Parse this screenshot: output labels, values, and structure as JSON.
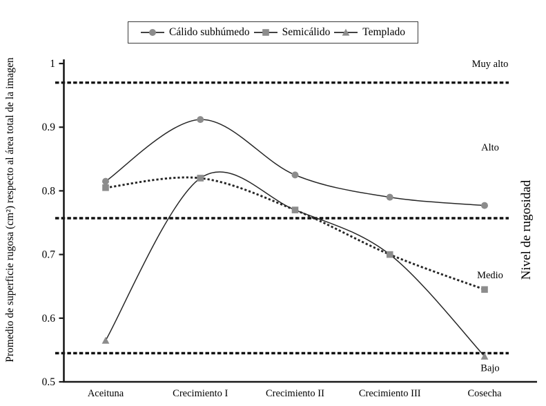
{
  "chart_data": {
    "type": "line",
    "title": "",
    "categories": [
      "Aceituna",
      "Crecimiento I",
      "Crecimiento II",
      "Crecimiento III",
      "Cosecha"
    ],
    "ylabel": "Promedio de superficie rugosa (cm²) respecto al área total de la imagen",
    "ylabel_right": "Nivel de rugosidad",
    "ylim": [
      0.5,
      1
    ],
    "grid": false,
    "legend_position": "top",
    "y_axis": {
      "tick_values": [
        1,
        0.9,
        0.8,
        0.7,
        0.6,
        0.5
      ],
      "tick_labels": [
        "1",
        "0.9",
        "0.8",
        "0.7",
        "0.6",
        "0.5"
      ]
    },
    "reference_lines": {
      "style": "dashed",
      "values": [
        0.97,
        0.757,
        0.545
      ]
    },
    "zone_labels": [
      {
        "text": "Muy alto",
        "value": 1.0
      },
      {
        "text": "Alto",
        "value": 0.869
      },
      {
        "text": "Medio",
        "value": 0.668
      },
      {
        "text": "Bajo",
        "value": 0.522
      }
    ],
    "series": [
      {
        "name": "Cálido subhúmedo",
        "marker": "circle",
        "line_style": "solid",
        "values": [
          0.815,
          0.912,
          0.825,
          0.79,
          0.777
        ],
        "markers_visible_at": [
          0,
          1,
          2,
          3,
          4
        ]
      },
      {
        "name": "Semicálido",
        "marker": "square",
        "line_style": "dotted",
        "values": [
          0.805,
          0.82,
          0.77,
          0.7,
          0.645
        ],
        "markers_visible_at": [
          0,
          1,
          2,
          3,
          4
        ]
      },
      {
        "name": "Templado",
        "marker": "triangle",
        "line_style": "solid",
        "values": [
          0.565,
          0.82,
          0.77,
          0.7,
          0.54
        ],
        "markers_visible_at": [
          0,
          4
        ]
      }
    ],
    "colors": {
      "marker": "#8c8c8c",
      "line": "#262626",
      "reference": "#111111",
      "axis": "#1a1a1a",
      "text": "#000000"
    }
  }
}
